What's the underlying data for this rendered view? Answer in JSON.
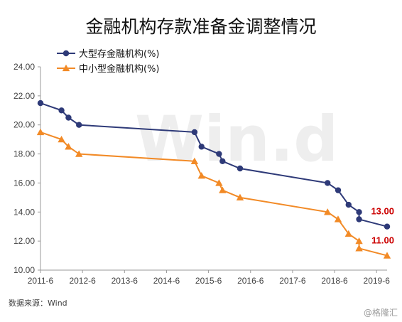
{
  "source_note": "数据来源：Wind",
  "watermark": "Win.d",
  "brand": "@格隆汇",
  "chart_data": {
    "type": "line",
    "title": "金融机构存款准备金调整情况",
    "xlabel": "",
    "ylabel": "",
    "ylim": [
      10,
      24
    ],
    "yticks": [
      "10.00",
      "12.00",
      "14.00",
      "16.00",
      "18.00",
      "20.00",
      "22.00",
      "24.00"
    ],
    "xticks": [
      "2011-6",
      "2012-6",
      "2013-6",
      "2014-6",
      "2015-6",
      "2016-6",
      "2017-6",
      "2018-6",
      "2019-6"
    ],
    "grid": false,
    "legend": "top-left",
    "series": [
      {
        "name": "大型存金融机构(%)",
        "color": "#2e3a78",
        "marker": "circle",
        "points": [
          [
            "2011-06",
            21.5
          ],
          [
            "2011-12",
            21.0
          ],
          [
            "2012-02",
            20.5
          ],
          [
            "2012-05",
            20.0
          ],
          [
            "2015-02",
            19.5
          ],
          [
            "2015-04",
            18.5
          ],
          [
            "2015-09",
            18.0
          ],
          [
            "2015-10",
            17.5
          ],
          [
            "2016-03",
            17.0
          ],
          [
            "2018-04",
            16.0
          ],
          [
            "2018-07",
            15.5
          ],
          [
            "2018-10",
            14.5
          ],
          [
            "2019-01",
            14.0
          ],
          [
            "2019-01",
            13.5
          ],
          [
            "2019-09",
            13.0
          ]
        ]
      },
      {
        "name": "中小型金融机构(%)",
        "color": "#f28a26",
        "marker": "triangle",
        "points": [
          [
            "2011-06",
            19.5
          ],
          [
            "2011-12",
            19.0
          ],
          [
            "2012-02",
            18.5
          ],
          [
            "2012-05",
            18.0
          ],
          [
            "2015-02",
            17.5
          ],
          [
            "2015-04",
            16.5
          ],
          [
            "2015-09",
            16.0
          ],
          [
            "2015-10",
            15.5
          ],
          [
            "2016-03",
            15.0
          ],
          [
            "2018-04",
            14.0
          ],
          [
            "2018-07",
            13.5
          ],
          [
            "2018-10",
            12.5
          ],
          [
            "2019-01",
            12.0
          ],
          [
            "2019-01",
            11.5
          ],
          [
            "2019-09",
            11.0
          ]
        ]
      }
    ],
    "annotations": [
      {
        "series": 0,
        "label": "13.00"
      },
      {
        "series": 1,
        "label": "11.00"
      }
    ]
  }
}
